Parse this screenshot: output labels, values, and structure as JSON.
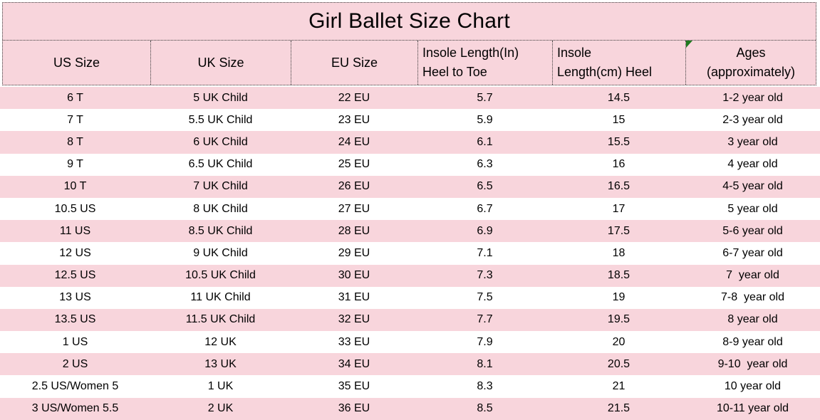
{
  "title": "Girl Ballet Size Chart",
  "colors": {
    "pink_stripe": "#F8D5DC",
    "border_dotted": "#3a3a3a",
    "text": "#000000",
    "corner_marker_green": "#1F7A1F"
  },
  "header": {
    "cells": [
      {
        "lines": [
          "US Size"
        ]
      },
      {
        "lines": [
          "UK Size"
        ]
      },
      {
        "lines": [
          "EU Size"
        ]
      },
      {
        "lines": [
          "Insole Length(In)",
          "Heel to Toe"
        ]
      },
      {
        "lines": [
          "Insole",
          "Length(cm) Heel"
        ]
      },
      {
        "lines": [
          "Ages",
          "(approximately)"
        ]
      }
    ]
  },
  "rows": [
    [
      "6 T",
      "5 UK Child",
      "22 EU",
      "5.7",
      "14.5",
      "1-2 year old"
    ],
    [
      "7 T",
      "5.5 UK Child",
      "23 EU",
      "5.9",
      "15",
      "2-3 year old"
    ],
    [
      "8 T",
      "6 UK Child",
      "24 EU",
      "6.1",
      "15.5",
      "3 year old"
    ],
    [
      "9 T",
      "6.5 UK Child",
      "25 EU",
      "6.3",
      "16",
      "4 year old"
    ],
    [
      "10 T",
      "7 UK Child",
      "26 EU",
      "6.5",
      "16.5",
      "4-5 year old"
    ],
    [
      "10.5 US",
      "8 UK Child",
      "27 EU",
      "6.7",
      "17",
      "5 year old"
    ],
    [
      "11 US",
      "8.5 UK Child",
      "28 EU",
      "6.9",
      "17.5",
      "5-6 year old"
    ],
    [
      "12 US",
      "9 UK Child",
      "29 EU",
      "7.1",
      "18",
      "6-7 year old"
    ],
    [
      "12.5 US",
      "10.5 UK Child",
      "30 EU",
      "7.3",
      "18.5",
      "7  year old"
    ],
    [
      "13 US",
      "11 UK Child",
      "31 EU",
      "7.5",
      "19",
      "7-8  year old"
    ],
    [
      "13.5 US",
      "11.5 UK Child",
      "32 EU",
      "7.7",
      "19.5",
      "8 year old"
    ],
    [
      "1 US",
      "12 UK",
      "33 EU",
      "7.9",
      "20",
      "8-9 year old"
    ],
    [
      "2 US",
      "13 UK",
      "34 EU",
      "8.1",
      "20.5",
      "9-10  year old"
    ],
    [
      "2.5 US/Women 5",
      "1 UK",
      "35 EU",
      "8.3",
      "21",
      "10 year old"
    ],
    [
      "3 US/Women 5.5",
      "2 UK",
      "36 EU",
      "8.5",
      "21.5",
      "10-11 year old"
    ]
  ]
}
